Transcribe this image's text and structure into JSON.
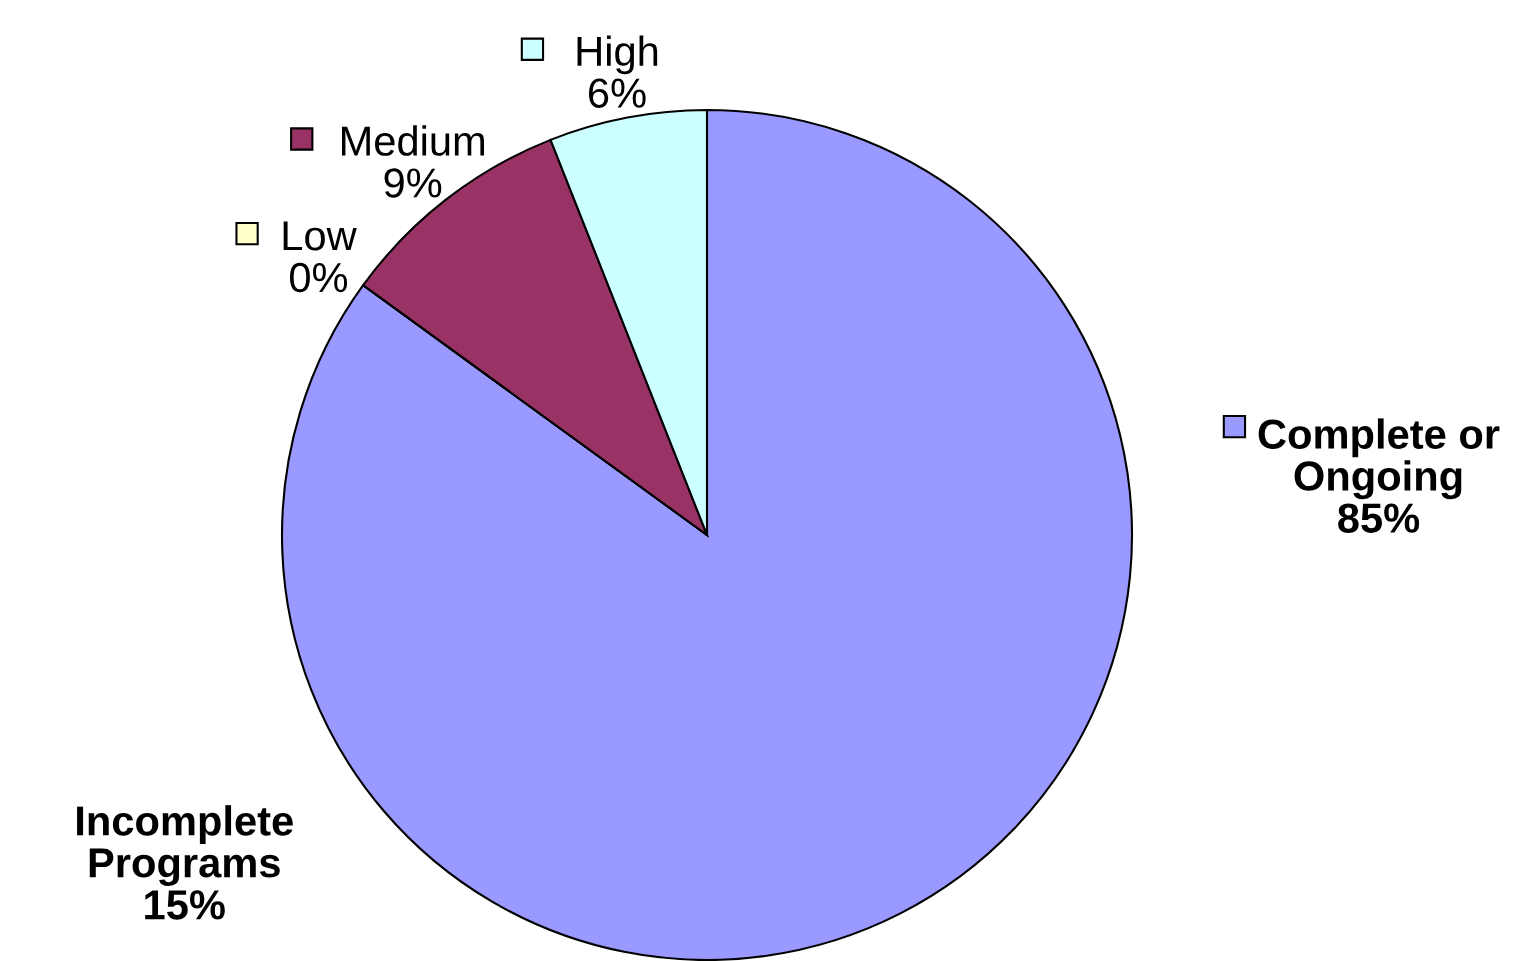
{
  "chart_data": {
    "type": "pie",
    "categories": [
      "Complete or Ongoing",
      "Low",
      "Medium",
      "High"
    ],
    "values": [
      85,
      0,
      9,
      6
    ],
    "colors": [
      "#9999ff",
      "#ffffcc",
      "#993366",
      "#ccffff"
    ],
    "value_labels": [
      "85%",
      "0%",
      "9%",
      "6%"
    ],
    "legend": "top right",
    "annotations": [
      "Incomplete Programs\n15%"
    ]
  }
}
